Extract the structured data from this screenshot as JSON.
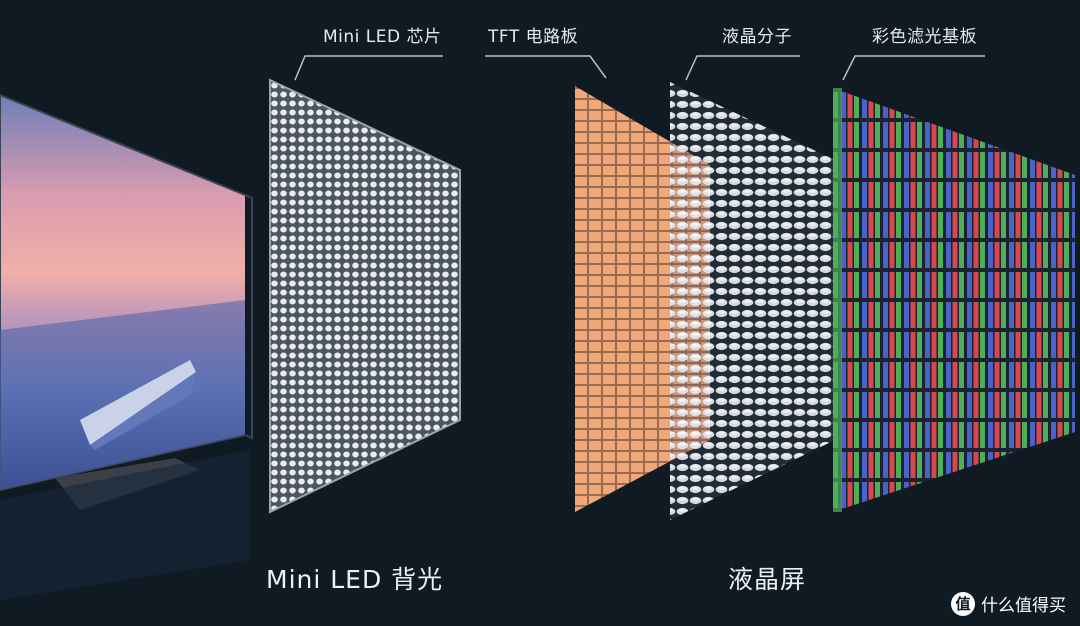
{
  "labels": {
    "mini_led_chip": "Mini LED 芯片",
    "tft_board": "TFT 电路板",
    "lc_molecules": "液晶分子",
    "color_filter": "彩色滤光基板",
    "backlight": "Mini LED 背光",
    "lcd_panel": "液晶屏"
  },
  "watermark": {
    "logo_glyph": "值",
    "text": "什么值得买"
  },
  "colors": {
    "background": "#0f1a22",
    "tft_cell": "#f0a878",
    "led_dot": "#e8ecf2",
    "filter_red": "#d8474c",
    "filter_green": "#4fae5a",
    "filter_blue": "#4a63c9"
  }
}
